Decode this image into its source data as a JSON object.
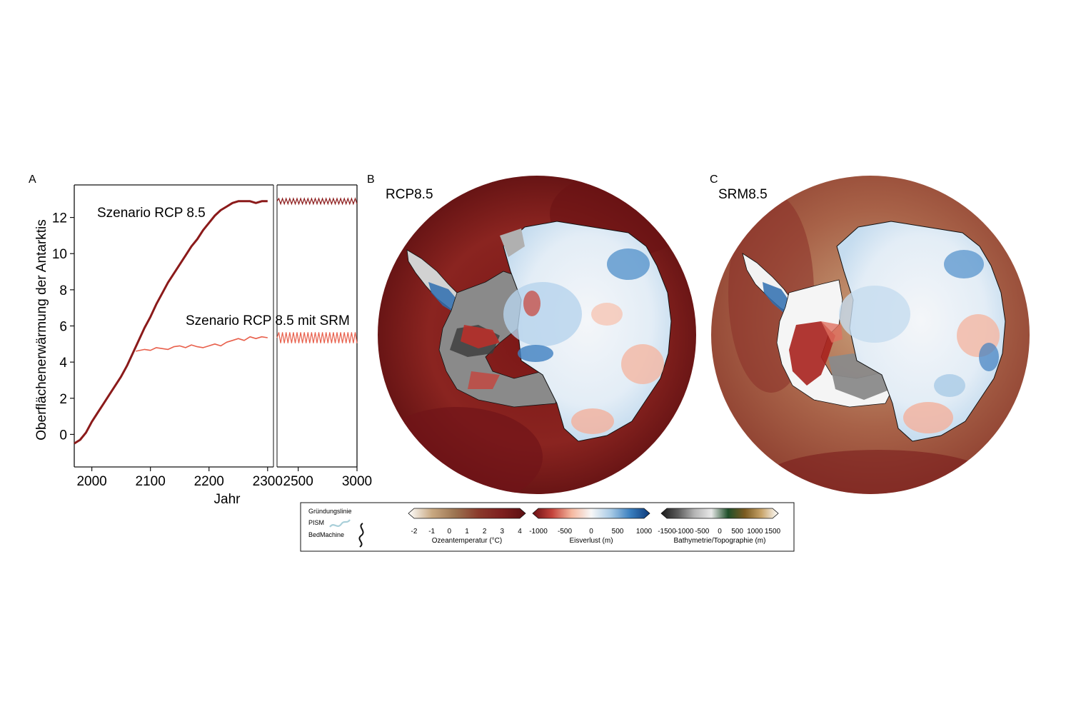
{
  "panel_a": {
    "letter": "A",
    "ylabel": "Oberflächenerwärmung der Antarktis",
    "xlabel": "Jahr",
    "label_rcp": "Szenario RCP 8.5",
    "label_srm": "Szenario RCP 8.5 mit SRM"
  },
  "panel_b": {
    "letter": "B",
    "title": "RCP8.5"
  },
  "panel_c": {
    "letter": "C",
    "title": "SRM8.5"
  },
  "legend": {
    "groundingline_title": "Gründungslinie",
    "pism": "PISM",
    "bedmachine": "BedMachine",
    "colorbars": [
      {
        "label": "Ozeantemperatur (°C)",
        "ticks": [
          "-2",
          "-1",
          "0",
          "1",
          "2",
          "3",
          "4"
        ],
        "colors": [
          "#ffffff",
          "#c9a982",
          "#9b7350",
          "#8a3a2c",
          "#7d1f1f",
          "#5c0f12"
        ]
      },
      {
        "label": "Eisverlust (m)",
        "ticks": [
          "-1000",
          "-500",
          "0",
          "500",
          "1000"
        ],
        "colors": [
          "#6b0f14",
          "#c4443c",
          "#f5b8a0",
          "#f7f7f7",
          "#a9cbe6",
          "#3a7fbf",
          "#0d3a7a"
        ]
      },
      {
        "label": "Bathymetrie/Topographie (m)",
        "ticks": [
          "-1500",
          "-1000",
          "-500",
          "0",
          "500",
          "1000",
          "1500"
        ],
        "colors": [
          "#1a1a1a",
          "#5a5a5a",
          "#b5b5b5",
          "#e8e8e8",
          "#1f4f2a",
          "#7a5a20",
          "#c8a46a",
          "#ffffff"
        ]
      }
    ]
  },
  "chart_data": {
    "type": "line",
    "xlabel": "Jahr",
    "ylabel": "Oberflächenerwärmung der Antarktis",
    "broken_x_axis": true,
    "xticks_left": [
      2000,
      2100,
      2200,
      2300
    ],
    "xticks_right": [
      2500,
      3000
    ],
    "xlim_left": [
      1970,
      2310
    ],
    "xlim_right": [
      2320,
      3000
    ],
    "yticks": [
      0,
      2,
      4,
      6,
      8,
      10,
      12
    ],
    "ylim": [
      -1.8,
      13.8
    ],
    "series": [
      {
        "name": "Szenario RCP 8.5",
        "color": "#8b1a1a",
        "x": [
          1970,
          1980,
          1990,
          2000,
          2010,
          2020,
          2030,
          2040,
          2050,
          2060,
          2070,
          2080,
          2090,
          2100,
          2110,
          2120,
          2130,
          2140,
          2150,
          2160,
          2170,
          2180,
          2190,
          2200,
          2210,
          2220,
          2230,
          2240,
          2250,
          2260,
          2270,
          2280,
          2290,
          2300
        ],
        "values": [
          -0.5,
          -0.3,
          0.1,
          0.7,
          1.2,
          1.7,
          2.2,
          2.7,
          3.2,
          3.8,
          4.5,
          5.2,
          5.9,
          6.5,
          7.2,
          7.8,
          8.4,
          8.9,
          9.4,
          9.9,
          10.4,
          10.8,
          11.3,
          11.7,
          12.1,
          12.4,
          12.6,
          12.8,
          12.9,
          12.9,
          12.9,
          12.8,
          12.9,
          12.9
        ],
        "x_ext": [
          2320,
          3000
        ],
        "values_ext": [
          12.9,
          12.9
        ],
        "oscillation_ext": 0.15
      },
      {
        "name": "Szenario RCP 8.5 mit SRM",
        "color": "#e8604c",
        "x": [
          2075,
          2090,
          2100,
          2110,
          2120,
          2130,
          2140,
          2150,
          2160,
          2170,
          2180,
          2190,
          2200,
          2210,
          2220,
          2230,
          2240,
          2250,
          2260,
          2270,
          2280,
          2290,
          2300
        ],
        "values": [
          4.6,
          4.7,
          4.65,
          4.8,
          4.75,
          4.7,
          4.85,
          4.9,
          4.8,
          4.95,
          4.85,
          4.8,
          4.9,
          5.0,
          4.9,
          5.1,
          5.2,
          5.3,
          5.2,
          5.4,
          5.3,
          5.4,
          5.35
        ],
        "x_ext": [
          2320,
          3000
        ],
        "values_ext": [
          5.35,
          5.35
        ],
        "oscillation_ext": 0.3
      }
    ]
  }
}
